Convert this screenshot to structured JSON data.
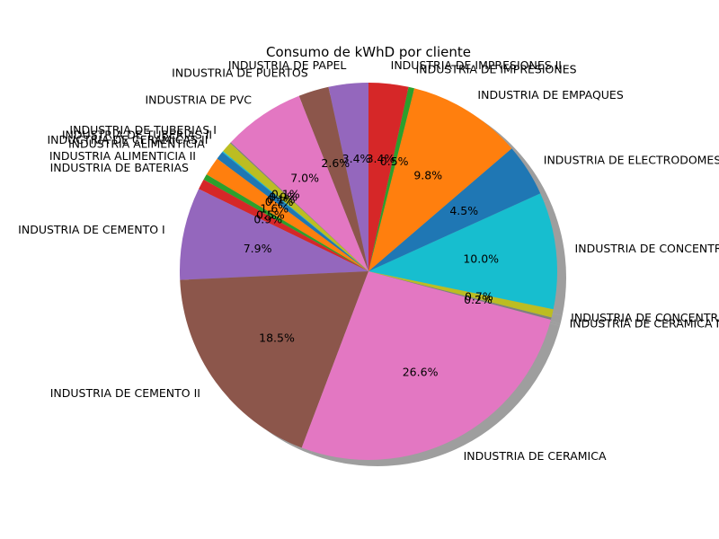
{
  "chart_data": {
    "type": "pie",
    "title": "Consumo de kWhD por cliente",
    "start_angle": 90,
    "direction": "counterclockwise",
    "shadow": true,
    "label_format": "{pct:.1f}%",
    "slices": [
      {
        "label": "INDUSTRIA DE PAPEL",
        "pct": 3.4,
        "color": "#9467bd"
      },
      {
        "label": "INDUSTRIA DE PUERTOS",
        "pct": 2.6,
        "color": "#8c564b"
      },
      {
        "label": "INDUSTRIA DE PVC",
        "pct": 7.0,
        "color": "#e377c2"
      },
      {
        "label": "INDUSTRIA DE TUBERIAS I",
        "pct": 0.1,
        "color": "#7f7f7f"
      },
      {
        "label": "INDUSTRIA DE TUBERIAS II",
        "pct": 0.9,
        "color": "#bcbd22"
      },
      {
        "label": "INDUCTRIA DE CERAMICAS II",
        "pct": 0.1,
        "color": "#17becf"
      },
      {
        "label": "INDUSTRIA ALIMENTICIA",
        "pct": 0.7,
        "color": "#1f77b4"
      },
      {
        "label": "INDUSTRIA ALIMENTICIA II",
        "pct": 1.6,
        "color": "#ff7f0e"
      },
      {
        "label": "INDUSTRIA DE BATERIAS",
        "pct": 0.5,
        "color": "#2ca02c"
      },
      {
        "label": "",
        "pct": 0.9,
        "color": "#d62728"
      },
      {
        "label": "INDUSTRIA DE CEMENTO I",
        "pct": 7.9,
        "color": "#9467bd"
      },
      {
        "label": "INDUSTRIA DE CEMENTO II",
        "pct": 18.5,
        "color": "#8c564b"
      },
      {
        "label": "INDUSTRIA DE CERAMICA",
        "pct": 26.6,
        "color": "#e377c2"
      },
      {
        "label": "INDUSTRIA DE CERAMICA II",
        "pct": 0.2,
        "color": "#7f7f7f"
      },
      {
        "label": "INDUSTRIA DE CONCENTRADOS",
        "pct": 0.7,
        "color": "#bcbd22"
      },
      {
        "label": "INDUSTRIA DE CONCENTRADOS II",
        "pct": 10.0,
        "color": "#17becf"
      },
      {
        "label": "INDUSTRIA DE ELECTRODOMESTICOS",
        "pct": 4.5,
        "color": "#1f77b4"
      },
      {
        "label": "INDUSTRIA DE EMPAQUES",
        "pct": 9.8,
        "color": "#ff7f0e"
      },
      {
        "label": "INDUSTRIA DE IMPRESIONES",
        "pct": 0.5,
        "color": "#2ca02c"
      },
      {
        "label": "INDUSTRIA DE IMPRESIONES II",
        "pct": 3.4,
        "color": "#d62728"
      }
    ]
  }
}
